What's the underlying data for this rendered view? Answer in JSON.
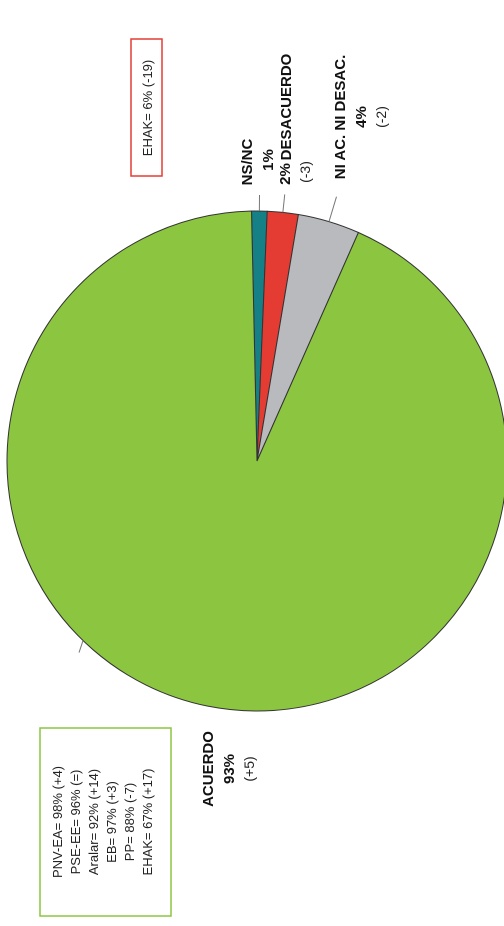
{
  "chart_data": {
    "type": "pie",
    "orientation": "rotated 90 degrees counter-clockwise",
    "slices": [
      {
        "label": "ACUERDO",
        "value": 93,
        "value_label": "93%",
        "change": "(+5)",
        "color": "#8cc540"
      },
      {
        "label": "NI AC. NI DESAC.",
        "value": 4,
        "value_label": "4%",
        "change": "(-2)",
        "color": "#b9babd"
      },
      {
        "label": "DESACUERDO",
        "value": 2,
        "value_label": "2%",
        "change": "(-3)",
        "color": "#e43c33"
      },
      {
        "label": "NS/NC",
        "value": 1,
        "value_label": "1%",
        "change": "",
        "color": "#168087"
      }
    ],
    "callouts": [
      {
        "lines": [
          "EHAK= 6% (-19)"
        ],
        "border_color": "#e43c33"
      },
      {
        "lines": [
          "PNV-EA= 98% (+4)",
          "PSE-EE= 96% (=)",
          "Aralar= 92% (+14)",
          "EB= 97% (+3)",
          "PP= 88% (-7)",
          "EHAK= 67% (+17)"
        ],
        "border_color": "#8cc540"
      }
    ]
  }
}
